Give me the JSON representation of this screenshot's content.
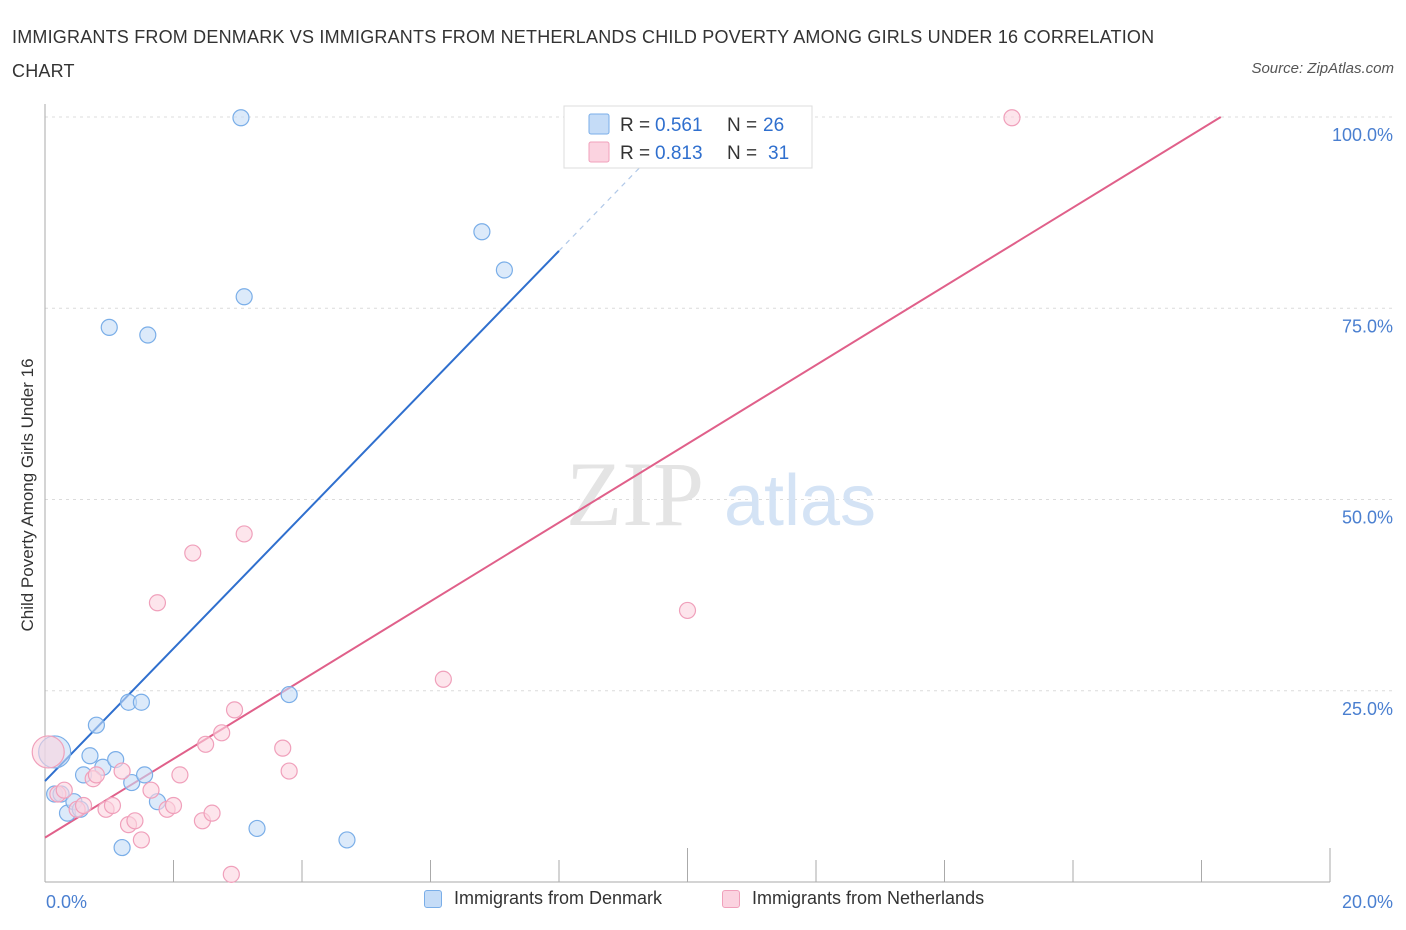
{
  "title": "IMMIGRANTS FROM DENMARK VS IMMIGRANTS FROM NETHERLANDS CHILD POVERTY AMONG GIRLS UNDER 16 CORRELATION CHART",
  "source": "Source: ZipAtlas.com",
  "watermark": {
    "zip": "ZIP",
    "atlas": "atlas"
  },
  "chart_data": {
    "type": "scatter",
    "title": "IMMIGRANTS FROM DENMARK VS IMMIGRANTS FROM NETHERLANDS CHILD POVERTY AMONG GIRLS UNDER 16 CORRELATION CHART",
    "xlabel": "",
    "ylabel": "Child Poverty Among Girls Under 16",
    "xlim": [
      0,
      20
    ],
    "ylim": [
      0,
      100
    ],
    "x_tick_labels": [
      {
        "value": 0,
        "label": "0.0%"
      },
      {
        "value": 20,
        "label": "20.0%"
      }
    ],
    "y_tick_labels": [
      {
        "value": 25,
        "label": "25.0%"
      },
      {
        "value": 50,
        "label": "50.0%"
      },
      {
        "value": 75,
        "label": "75.0%"
      },
      {
        "value": 100,
        "label": "100.0%"
      }
    ],
    "grid": true,
    "legend_position": "top-center",
    "series": [
      {
        "name": "Immigrants from Denmark",
        "color": "#7aaee8",
        "fill": "#c5dcf7",
        "line_color": "#2f6fce",
        "R": "0.561",
        "N": "26",
        "trend": {
          "x0": 0.0,
          "y0": 13.2,
          "x1": 8.0,
          "y1": 82.5,
          "dashed_to_x": 9.5,
          "dashed_to_y": 95.5
        },
        "points": [
          {
            "x": 0.15,
            "y": 17.0,
            "big": true
          },
          {
            "x": 0.15,
            "y": 11.5
          },
          {
            "x": 0.25,
            "y": 11.5
          },
          {
            "x": 0.35,
            "y": 9.0
          },
          {
            "x": 0.45,
            "y": 10.5
          },
          {
            "x": 0.55,
            "y": 9.5
          },
          {
            "x": 0.6,
            "y": 14.0
          },
          {
            "x": 0.7,
            "y": 16.5
          },
          {
            "x": 0.8,
            "y": 20.5
          },
          {
            "x": 0.9,
            "y": 15.0
          },
          {
            "x": 1.1,
            "y": 16.0
          },
          {
            "x": 1.0,
            "y": 72.5
          },
          {
            "x": 1.2,
            "y": 4.5
          },
          {
            "x": 1.3,
            "y": 23.5
          },
          {
            "x": 1.35,
            "y": 13.0
          },
          {
            "x": 1.5,
            "y": 23.5
          },
          {
            "x": 1.55,
            "y": 14.0
          },
          {
            "x": 1.6,
            "y": 71.5
          },
          {
            "x": 1.75,
            "y": 10.5
          },
          {
            "x": 3.05,
            "y": 99.9
          },
          {
            "x": 3.1,
            "y": 76.5
          },
          {
            "x": 3.3,
            "y": 7.0
          },
          {
            "x": 3.8,
            "y": 24.5
          },
          {
            "x": 4.7,
            "y": 5.5
          },
          {
            "x": 6.8,
            "y": 85.0
          },
          {
            "x": 7.15,
            "y": 80.0
          }
        ]
      },
      {
        "name": "Immigrants from Netherlands",
        "color": "#f0a0bb",
        "fill": "#fbd3e0",
        "line_color": "#e0608a",
        "R": "0.813",
        "N": "31",
        "trend": {
          "x0": 0.0,
          "y0": 5.8,
          "x1": 18.3,
          "y1": 100.0
        },
        "points": [
          {
            "x": 0.05,
            "y": 17.0,
            "big": true
          },
          {
            "x": 0.2,
            "y": 11.5
          },
          {
            "x": 0.3,
            "y": 12.0
          },
          {
            "x": 0.5,
            "y": 9.5
          },
          {
            "x": 0.6,
            "y": 10.0
          },
          {
            "x": 0.75,
            "y": 13.5
          },
          {
            "x": 0.8,
            "y": 14.0
          },
          {
            "x": 0.95,
            "y": 9.5
          },
          {
            "x": 1.05,
            "y": 10.0
          },
          {
            "x": 1.2,
            "y": 14.5
          },
          {
            "x": 1.3,
            "y": 7.5
          },
          {
            "x": 1.4,
            "y": 8.0
          },
          {
            "x": 1.5,
            "y": 5.5
          },
          {
            "x": 1.65,
            "y": 12.0
          },
          {
            "x": 1.75,
            "y": 36.5
          },
          {
            "x": 1.9,
            "y": 9.5
          },
          {
            "x": 2.0,
            "y": 10.0
          },
          {
            "x": 2.1,
            "y": 14.0
          },
          {
            "x": 2.3,
            "y": 43.0
          },
          {
            "x": 2.45,
            "y": 8.0
          },
          {
            "x": 2.5,
            "y": 18.0
          },
          {
            "x": 2.6,
            "y": 9.0
          },
          {
            "x": 2.75,
            "y": 19.5
          },
          {
            "x": 2.9,
            "y": 1.0
          },
          {
            "x": 2.95,
            "y": 22.5
          },
          {
            "x": 3.1,
            "y": 45.5
          },
          {
            "x": 3.7,
            "y": 17.5
          },
          {
            "x": 3.8,
            "y": 14.5
          },
          {
            "x": 6.2,
            "y": 26.5
          },
          {
            "x": 10.0,
            "y": 35.5
          },
          {
            "x": 15.05,
            "y": 99.9
          }
        ]
      }
    ]
  }
}
